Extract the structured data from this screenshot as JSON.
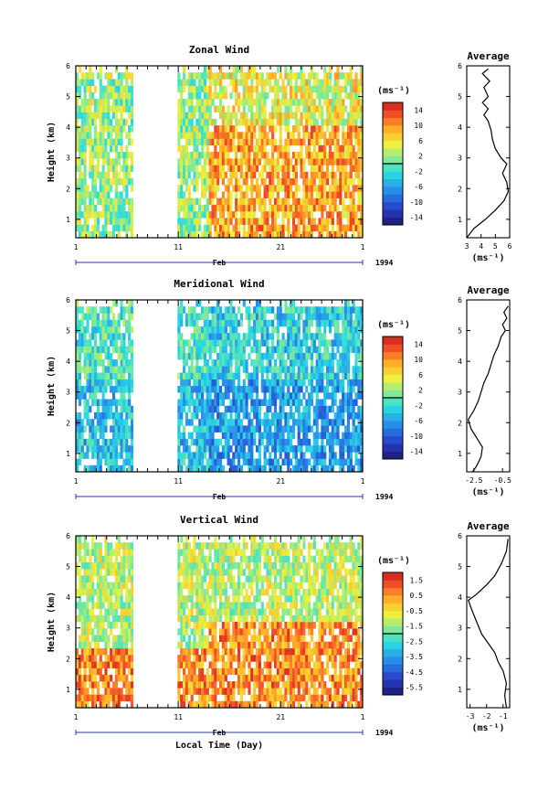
{
  "chart_data": [
    {
      "type": "heatmap",
      "title": "Zonal Wind",
      "ylabel": "Height (km)",
      "xlabel": "",
      "x_ticks": [
        "1",
        "11",
        "21",
        "1"
      ],
      "x_sublabel": "Feb",
      "year": "1994",
      "ylim": [
        0.4,
        6
      ],
      "y_ticks": [
        1,
        2,
        3,
        4,
        5,
        6
      ],
      "colorbar": {
        "unit": "(ms⁻¹)",
        "ticks": [
          "14",
          "10",
          "6",
          "2",
          "-2",
          "-6",
          "-10",
          "-14"
        ],
        "min": -16,
        "max": 16
      },
      "data_gaps_days": [
        [
          5.6,
          10.0
        ]
      ],
      "typical_values": {
        "before_day_13": 2,
        "after_day_13": 9
      },
      "profile": {
        "title": "Average",
        "xlabel": "(ms⁻¹)",
        "x_ticks": [
          "3",
          "4",
          "5",
          "6"
        ],
        "xlim": [
          3,
          6
        ],
        "y_ticks": [
          "1",
          "2",
          "3",
          "4",
          "5",
          "6"
        ],
        "points": [
          [
            3.0,
            0.4
          ],
          [
            3.5,
            0.7
          ],
          [
            4.3,
            1.0
          ],
          [
            5.0,
            1.3
          ],
          [
            5.6,
            1.6
          ],
          [
            5.9,
            1.9
          ],
          [
            5.8,
            2.2
          ],
          [
            5.5,
            2.5
          ],
          [
            5.8,
            2.8
          ],
          [
            5.4,
            3.0
          ],
          [
            5.0,
            3.3
          ],
          [
            4.8,
            3.6
          ],
          [
            4.7,
            3.9
          ],
          [
            4.5,
            4.2
          ],
          [
            4.2,
            4.4
          ],
          [
            4.5,
            4.6
          ],
          [
            4.1,
            4.8
          ],
          [
            4.5,
            5.0
          ],
          [
            4.2,
            5.3
          ],
          [
            4.6,
            5.5
          ],
          [
            4.1,
            5.75
          ],
          [
            4.5,
            5.9
          ]
        ]
      }
    },
    {
      "type": "heatmap",
      "title": "Meridional Wind",
      "ylabel": "Height (km)",
      "xlabel": "",
      "x_ticks": [
        "1",
        "11",
        "21",
        "1"
      ],
      "x_sublabel": "Feb",
      "year": "1994",
      "ylim": [
        0.4,
        6
      ],
      "y_ticks": [
        1,
        2,
        3,
        4,
        5,
        6
      ],
      "colorbar": {
        "unit": "(ms⁻¹)",
        "ticks": [
          "14",
          "10",
          "6",
          "2",
          "-2",
          "-6",
          "-10",
          "-14"
        ],
        "min": -16,
        "max": 16
      },
      "data_gaps_days": [
        [
          5.6,
          10.0
        ]
      ],
      "typical_values": {
        "before_day_13": -4,
        "after_day_13": -6
      },
      "profile": {
        "title": "Average",
        "xlabel": "(ms⁻¹)",
        "x_ticks": [
          "-2.5",
          "-0.5"
        ],
        "xlim": [
          -3.0,
          0.0
        ],
        "y_ticks": [
          "1",
          "2",
          "3",
          "4",
          "5",
          "6"
        ],
        "points": [
          [
            -2.6,
            0.4
          ],
          [
            -2.3,
            0.6
          ],
          [
            -2.0,
            0.9
          ],
          [
            -1.9,
            1.2
          ],
          [
            -2.3,
            1.5
          ],
          [
            -2.7,
            1.8
          ],
          [
            -2.9,
            2.1
          ],
          [
            -2.5,
            2.4
          ],
          [
            -2.2,
            2.7
          ],
          [
            -2.0,
            3.0
          ],
          [
            -1.8,
            3.3
          ],
          [
            -1.5,
            3.6
          ],
          [
            -1.3,
            3.9
          ],
          [
            -1.1,
            4.2
          ],
          [
            -0.8,
            4.5
          ],
          [
            -0.6,
            4.8
          ],
          [
            -0.3,
            5.0
          ],
          [
            -0.5,
            5.2
          ],
          [
            -0.2,
            5.4
          ],
          [
            -0.4,
            5.6
          ],
          [
            -0.1,
            5.8
          ]
        ]
      }
    },
    {
      "type": "heatmap",
      "title": "Vertical Wind",
      "ylabel": "Height (km)",
      "xlabel": "Local Time (Day)",
      "x_ticks": [
        "1",
        "11",
        "21",
        "1"
      ],
      "x_sublabel": "Feb",
      "year": "1994",
      "ylim": [
        0.4,
        6
      ],
      "y_ticks": [
        1,
        2,
        3,
        4,
        5,
        6
      ],
      "colorbar": {
        "unit": "(ms⁻¹)",
        "ticks": [
          "1.5",
          "0.5",
          "-0.5",
          "-1.5",
          "-2.5",
          "-3.5",
          "-4.5",
          "-5.5"
        ],
        "min": -6,
        "max": 2
      },
      "data_gaps_days": [
        [
          5.6,
          10.0
        ]
      ],
      "typical_values": {
        "below_2.3km": 0.6,
        "above_4km": -1.2
      },
      "profile": {
        "title": "Average",
        "xlabel": "(ms⁻¹)",
        "x_ticks": [
          "-3",
          "-2",
          "-1"
        ],
        "xlim": [
          -3.2,
          -0.6
        ],
        "y_ticks": [
          "1",
          "2",
          "3",
          "4",
          "5",
          "6"
        ],
        "points": [
          [
            -0.8,
            0.4
          ],
          [
            -0.9,
            0.8
          ],
          [
            -0.8,
            1.2
          ],
          [
            -1.0,
            1.6
          ],
          [
            -1.3,
            1.9
          ],
          [
            -1.5,
            2.2
          ],
          [
            -1.9,
            2.5
          ],
          [
            -2.3,
            2.8
          ],
          [
            -2.6,
            3.2
          ],
          [
            -2.9,
            3.6
          ],
          [
            -3.1,
            3.9
          ],
          [
            -2.6,
            4.1
          ],
          [
            -2.0,
            4.4
          ],
          [
            -1.5,
            4.7
          ],
          [
            -1.1,
            5.1
          ],
          [
            -0.8,
            5.5
          ],
          [
            -0.7,
            5.9
          ]
        ]
      }
    }
  ]
}
